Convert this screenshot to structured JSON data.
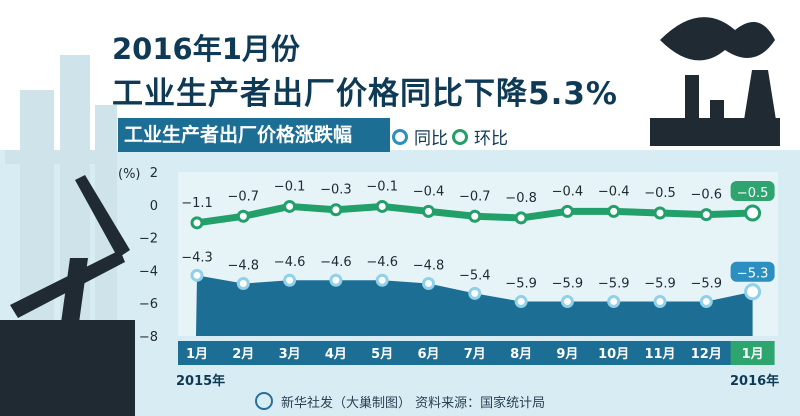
{
  "header": {
    "title_line1": "2016年1月份",
    "title_line2": "工业生产者出厂价格同比下降5.3%",
    "subtitle": "工业生产者出厂价格涨跌幅"
  },
  "legend": [
    {
      "label": "同比",
      "color": "#2b8fc1"
    },
    {
      "label": "环比",
      "color": "#23a06a"
    }
  ],
  "years": {
    "start": "2015年",
    "end": "2016年"
  },
  "footer": {
    "text": "新华社发（大巢制图）   资料来源：国家统计局"
  },
  "chart_data": {
    "type": "line",
    "ylabel": "(%)",
    "ylim": [
      -8,
      2
    ],
    "yticks": [
      "2",
      "0",
      "−2",
      "−4",
      "−6",
      "−8"
    ],
    "categories": [
      "1月",
      "2月",
      "3月",
      "4月",
      "5月",
      "6月",
      "7月",
      "8月",
      "9月",
      "10月",
      "11月",
      "12月",
      "1月"
    ],
    "series": [
      {
        "name": "同比",
        "values": [
          -4.3,
          -4.8,
          -4.6,
          -4.6,
          -4.6,
          -4.8,
          -5.4,
          -5.9,
          -5.9,
          -5.9,
          -5.9,
          -5.9,
          -5.3
        ],
        "labels": [
          "−4.3",
          "−4.8",
          "−4.6",
          "−4.6",
          "−4.6",
          "−4.8",
          "−5.4",
          "−5.9",
          "−5.9",
          "−5.9",
          "−5.9",
          "−5.9",
          "−5.3"
        ]
      },
      {
        "name": "环比",
        "values": [
          -1.1,
          -0.7,
          -0.1,
          -0.3,
          -0.1,
          -0.4,
          -0.7,
          -0.8,
          -0.4,
          -0.4,
          -0.5,
          -0.6,
          -0.5
        ],
        "labels": [
          "−1.1",
          "−0.7",
          "−0.1",
          "−0.3",
          "−0.1",
          "−0.4",
          "−0.7",
          "−0.8",
          "−0.4",
          "−0.4",
          "−0.5",
          "−0.6",
          "−0.5"
        ]
      }
    ],
    "colors": {
      "yoy_fill": "#1d6e95",
      "mom_line": "#23a06a",
      "axis_bg": "#1d6e95",
      "highlight": "#2ea56e"
    }
  }
}
